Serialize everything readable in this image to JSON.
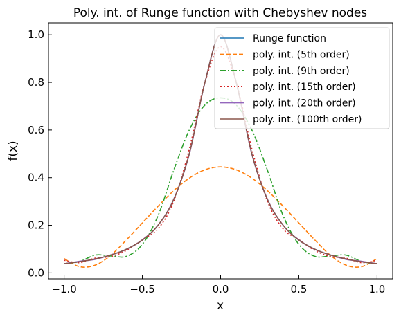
{
  "chart_data": {
    "type": "line",
    "title": "Poly. int. of Runge function with Chebyshev nodes",
    "xlabel": "x",
    "ylabel": "f(x)",
    "xlim": [
      -1.1,
      1.1
    ],
    "ylim": [
      -0.025,
      1.05
    ],
    "x_ticks": [
      -1.0,
      -0.5,
      0.0,
      0.5,
      1.0
    ],
    "x_tick_labels": [
      "−1.0",
      "−0.5",
      "0.0",
      "0.5",
      "1.0"
    ],
    "y_ticks": [
      0.0,
      0.2,
      0.4,
      0.6,
      0.8,
      1.0
    ],
    "y_tick_labels": [
      "0.0",
      "0.2",
      "0.4",
      "0.6",
      "0.8",
      "1.0"
    ],
    "grid": false,
    "legend_position": "top-right",
    "x": [
      -1.0,
      -0.9,
      -0.8,
      -0.7,
      -0.6,
      -0.5,
      -0.4,
      -0.3,
      -0.2,
      -0.1,
      0.0,
      0.1,
      0.2,
      0.3,
      0.4,
      0.5,
      0.6,
      0.7,
      0.8,
      0.9,
      1.0
    ],
    "series": [
      {
        "name": "Runge function",
        "color": "#1f77b4",
        "dash": "solid",
        "values": [
          0.0385,
          0.047,
          0.0588,
          0.0755,
          0.1,
          0.1379,
          0.2,
          0.3077,
          0.5,
          0.8,
          1.0,
          0.8,
          0.5,
          0.3077,
          0.2,
          0.1379,
          0.1,
          0.0755,
          0.0588,
          0.047,
          0.0385
        ]
      },
      {
        "name": "poly. int. (5th order)",
        "color": "#ff7f0e",
        "dash": "dashed",
        "values": [
          0.06,
          0.026,
          0.033,
          0.075,
          0.14,
          0.21,
          0.28,
          0.345,
          0.398,
          0.433,
          0.445,
          0.433,
          0.398,
          0.345,
          0.28,
          0.21,
          0.14,
          0.075,
          0.033,
          0.026,
          0.06
        ]
      },
      {
        "name": "poly. int. (9th order)",
        "color": "#2ca02c",
        "dash": "dashdot",
        "values": [
          0.0385,
          0.048,
          0.075,
          0.071,
          0.07,
          0.12,
          0.24,
          0.43,
          0.6,
          0.705,
          0.735,
          0.705,
          0.6,
          0.43,
          0.24,
          0.12,
          0.07,
          0.071,
          0.075,
          0.048,
          0.0385
        ]
      },
      {
        "name": "poly. int. (15th order)",
        "color": "#d62728",
        "dash": "dotted",
        "values": [
          0.053,
          0.043,
          0.062,
          0.069,
          0.095,
          0.14,
          0.185,
          0.3,
          0.52,
          0.8,
          0.95,
          0.8,
          0.52,
          0.3,
          0.185,
          0.14,
          0.095,
          0.069,
          0.062,
          0.043,
          0.053
        ]
      },
      {
        "name": "poly. int. (20th order)",
        "color": "#9467bd",
        "dash": "solid",
        "values": [
          0.0385,
          0.049,
          0.057,
          0.076,
          0.099,
          0.139,
          0.2,
          0.309,
          0.498,
          0.8,
          1.0,
          0.8,
          0.498,
          0.309,
          0.2,
          0.139,
          0.099,
          0.076,
          0.057,
          0.049,
          0.0385
        ]
      },
      {
        "name": "poly. int. (100th order)",
        "color": "#8c564b",
        "dash": "solid",
        "values": [
          0.0385,
          0.047,
          0.0588,
          0.0755,
          0.1,
          0.1379,
          0.2,
          0.3077,
          0.5,
          0.8,
          1.0,
          0.8,
          0.5,
          0.3077,
          0.2,
          0.1379,
          0.1,
          0.0755,
          0.0588,
          0.047,
          0.0385
        ]
      }
    ]
  }
}
